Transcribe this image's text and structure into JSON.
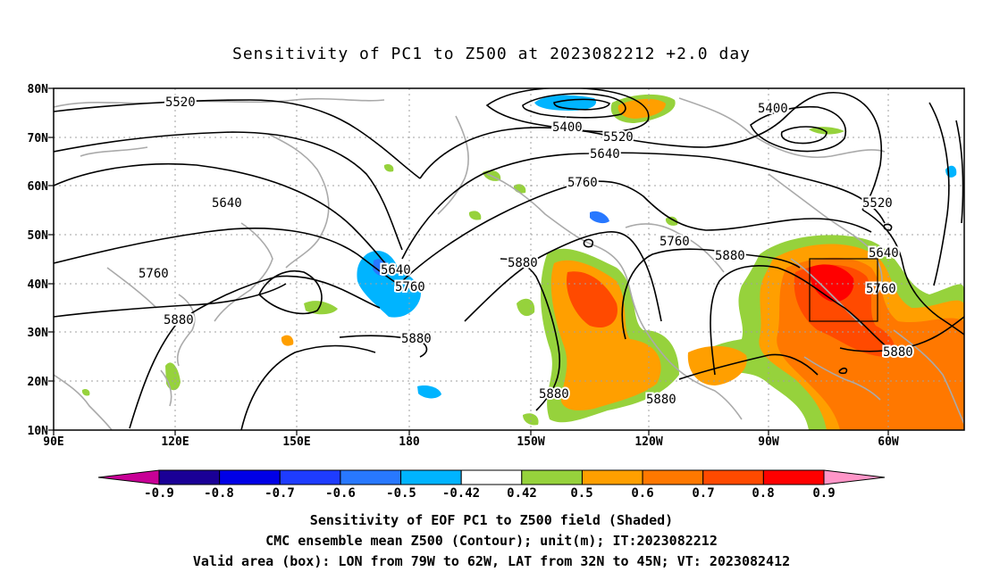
{
  "title": "Sensitivity of PC1 to Z500 at 2023082212 +2.0 day",
  "map": {
    "lat_labels": [
      "80N",
      "70N",
      "60N",
      "50N",
      "40N",
      "30N",
      "20N",
      "10N"
    ],
    "lon_labels": [
      "90E",
      "120E",
      "150E",
      "180",
      "150W",
      "120W",
      "90W",
      "60W"
    ],
    "contour_labels": [
      "5520",
      "5400",
      "5520",
      "5400",
      "5640",
      "5760",
      "5640",
      "5760",
      "5520",
      "5640",
      "5760",
      "5880",
      "5760",
      "5880",
      "5640",
      "5760",
      "5880",
      "5880",
      "5880",
      "5880"
    ],
    "valid_box": {
      "lon_west": -79,
      "lon_east": -62,
      "lat_south": 32,
      "lat_north": 45
    }
  },
  "colorbar": {
    "labels": [
      "-0.9",
      "-0.8",
      "-0.7",
      "-0.6",
      "-0.5",
      "-0.42",
      "0.42",
      "0.5",
      "0.6",
      "0.7",
      "0.8",
      "0.9"
    ],
    "colors": [
      "#1a0096",
      "#0000e6",
      "#1e3cff",
      "#2878ff",
      "#00b4ff",
      "#ffffff",
      "#96d23c",
      "#ff9f00",
      "#ff7800",
      "#ff4a00",
      "#ff0000"
    ],
    "low_end_color": "#c80096",
    "high_end_color": "#ff96c8"
  },
  "captions": {
    "line1": "Sensitivity of EOF PC1 to Z500 field (Shaded)",
    "line2": "CMC ensemble mean Z500 (Contour); unit(m); IT:2023082212",
    "line3": "Valid area (box): LON from 79W to 62W, LAT from 32N to 45N; VT: 2023082412"
  }
}
